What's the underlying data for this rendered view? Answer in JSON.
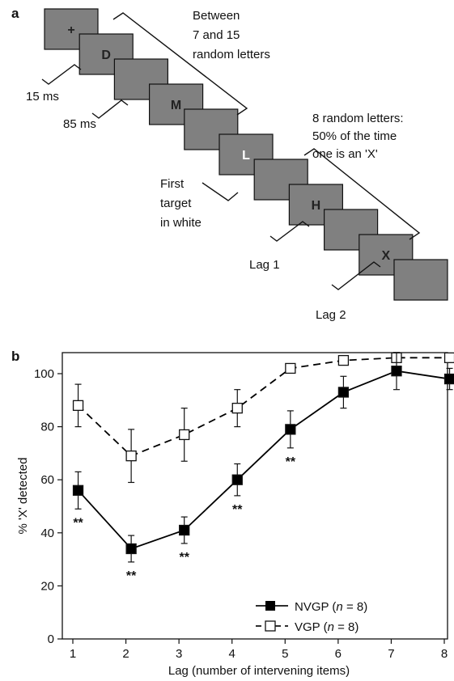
{
  "panel_a": {
    "label": "a",
    "cards": [
      {
        "letter": "+",
        "color": "#222222"
      },
      {
        "letter": "D",
        "color": "#222222"
      },
      {
        "letter": "",
        "color": "#222222"
      },
      {
        "letter": "M",
        "color": "#222222"
      },
      {
        "letter": "",
        "color": "#222222"
      },
      {
        "letter": "L",
        "color": "#ffffff"
      },
      {
        "letter": "",
        "color": "#222222"
      },
      {
        "letter": "H",
        "color": "#222222"
      },
      {
        "letter": "",
        "color": "#222222"
      },
      {
        "letter": "X",
        "color": "#222222"
      },
      {
        "letter": "",
        "color": "#222222"
      }
    ],
    "card_color": "#808080",
    "annotations": {
      "between": [
        "Between",
        "7 and 15",
        "random letters"
      ],
      "random8": [
        "8 random letters:",
        "50% of the time",
        "one is an 'X'"
      ],
      "first_target": [
        "First",
        "target",
        "in white"
      ],
      "ms15": "15 ms",
      "ms85": "85 ms",
      "lag1": "Lag 1",
      "lag2": "Lag 2"
    }
  },
  "panel_b": {
    "label": "b"
  },
  "chart_data": {
    "type": "line",
    "xlabel": "Lag (number of intervening items)",
    "ylabel": "% 'X' detected",
    "xlim": [
      1,
      8
    ],
    "ylim": [
      0,
      100
    ],
    "x_ticks": [
      1,
      2,
      3,
      4,
      5,
      6,
      7,
      8
    ],
    "y_ticks": [
      0,
      20,
      40,
      60,
      80,
      100
    ],
    "series": [
      {
        "name": "NVGP",
        "n_label": "n",
        "n_value": "= 8",
        "marker": "filled-square",
        "line": "solid",
        "color": "#000000",
        "x": [
          1.1,
          2.1,
          3.1,
          4.1,
          5.1,
          6.1,
          7.1,
          8.1
        ],
        "y": [
          56,
          34,
          41,
          60,
          79,
          93,
          101,
          98
        ],
        "err": [
          7,
          5,
          5,
          6,
          7,
          6,
          7,
          4
        ],
        "significance": [
          "**",
          "**",
          "**",
          "**",
          "**",
          "",
          "",
          ""
        ]
      },
      {
        "name": "VGP",
        "n_label": "n",
        "n_value": "= 8",
        "marker": "open-square",
        "line": "dashed",
        "color": "#000000",
        "x": [
          1.1,
          2.1,
          3.1,
          4.1,
          5.1,
          6.1,
          7.1,
          8.1
        ],
        "y": [
          88,
          69,
          77,
          87,
          102,
          105,
          106,
          106
        ],
        "err": [
          8,
          10,
          10,
          7,
          0,
          0,
          0,
          0
        ]
      }
    ],
    "legend_position": "bottom-right"
  }
}
